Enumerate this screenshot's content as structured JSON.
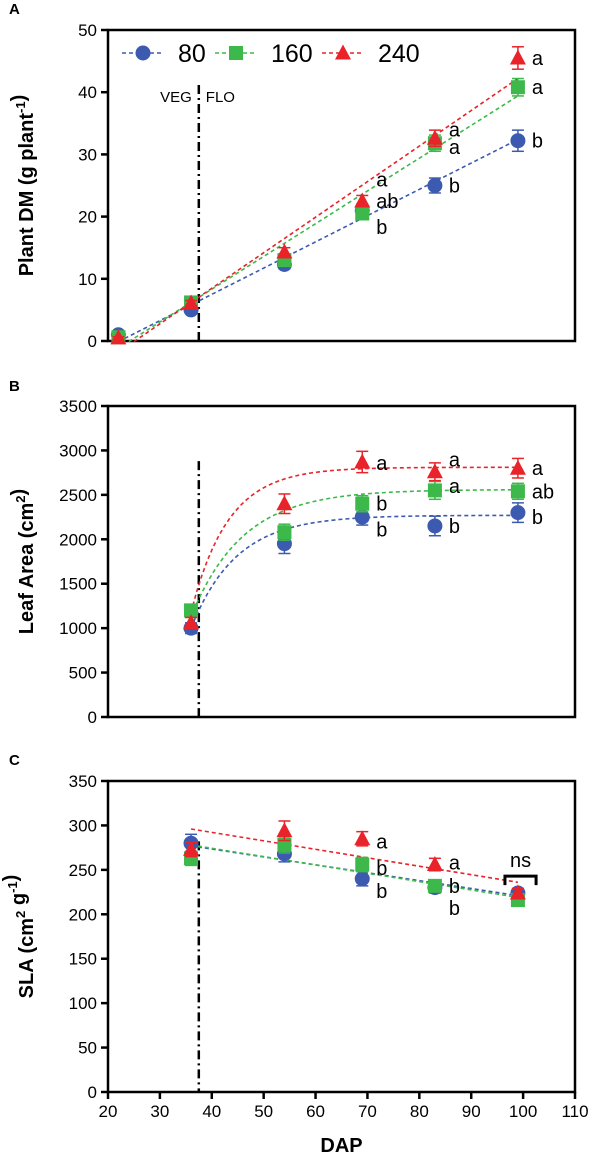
{
  "colors": {
    "s80": "#3c5bb0",
    "s160": "#3db84a",
    "s240": "#e8232a"
  },
  "legend": {
    "items": [
      {
        "key": "s80",
        "label": "80",
        "marker": "circle"
      },
      {
        "key": "s160",
        "label": "160",
        "marker": "square"
      },
      {
        "key": "s240",
        "label": "240",
        "marker": "triangle"
      }
    ],
    "placement": "top-left"
  },
  "chart_data": [
    {
      "panel": "A",
      "type": "scatter",
      "ylabel": "Plant DM (g plant-1)",
      "xlim": [
        20,
        110
      ],
      "ylim": [
        0,
        50
      ],
      "yticks": [
        0,
        10,
        20,
        30,
        40,
        50
      ],
      "vline": {
        "x": 37.5,
        "labels": [
          "VEG",
          "FLO"
        ]
      },
      "series": [
        {
          "key": "s80",
          "name": "80",
          "x": [
            22,
            36,
            54,
            69,
            83,
            99
          ],
          "y": [
            1,
            5,
            12.3,
            21,
            25,
            32.2
          ],
          "err": [
            0.3,
            0.5,
            0.7,
            1,
            1.2,
            1.7
          ],
          "fit": {
            "kind": "line",
            "points": [
              [
                22,
                -0.1
              ],
              [
                99,
                32.4
              ]
            ]
          }
        },
        {
          "key": "s160",
          "name": "160",
          "x": [
            22,
            36,
            54,
            69,
            83,
            99
          ],
          "y": [
            0.6,
            6.2,
            13,
            20.5,
            31.8,
            40.8
          ],
          "err": [
            0.2,
            0.4,
            0.6,
            0.8,
            1.3,
            1.4
          ],
          "fit": {
            "kind": "line",
            "points": [
              [
                24,
                -0.1
              ],
              [
                99,
                39.4
              ]
            ]
          }
        },
        {
          "key": "s240",
          "name": "240",
          "x": [
            22,
            36,
            54,
            69,
            83,
            99
          ],
          "y": [
            0.5,
            6.1,
            14.3,
            22.5,
            32.6,
            45.5
          ],
          "err": [
            0.2,
            0.4,
            0.7,
            0.9,
            1.3,
            1.8
          ],
          "fit": {
            "kind": "line",
            "points": [
              [
                25,
                -0.1
              ],
              [
                99,
                42.2
              ]
            ]
          }
        }
      ],
      "sig_labels": [
        {
          "x": 99,
          "y": 45.5,
          "text": "a"
        },
        {
          "x": 99,
          "y": 40.8,
          "text": "a"
        },
        {
          "x": 99,
          "y": 32.2,
          "text": "b"
        },
        {
          "x": 83,
          "y": 34,
          "text": "a"
        },
        {
          "x": 83,
          "y": 31.2,
          "text": "a"
        },
        {
          "x": 83,
          "y": 25,
          "text": "b"
        },
        {
          "x": 69,
          "y": 26,
          "text": "a"
        },
        {
          "x": 69,
          "y": 22.5,
          "text": "ab"
        },
        {
          "x": 69,
          "y": 18.3,
          "text": "b"
        }
      ]
    },
    {
      "panel": "B",
      "type": "scatter",
      "ylabel": "Leaf Area (cm2)",
      "xlim": [
        20,
        110
      ],
      "ylim": [
        0,
        3500
      ],
      "yticks": [
        0,
        500,
        1000,
        1500,
        2000,
        2500,
        3000,
        3500
      ],
      "vline": {
        "x": 37.5
      },
      "series": [
        {
          "key": "s80",
          "name": "80",
          "x": [
            36,
            54,
            69,
            83,
            99
          ],
          "y": [
            1000,
            1950,
            2250,
            2150,
            2300
          ],
          "err": [
            60,
            110,
            90,
            110,
            110
          ],
          "fit": {
            "kind": "exp",
            "x0": 36,
            "x1": 99,
            "y0": 1000,
            "plateau": 2270,
            "k": 0.115
          }
        },
        {
          "key": "s160",
          "name": "160",
          "x": [
            36,
            54,
            69,
            83,
            99
          ],
          "y": [
            1200,
            2080,
            2400,
            2550,
            2540
          ],
          "err": [
            60,
            90,
            90,
            100,
            90
          ],
          "fit": {
            "kind": "exp",
            "x0": 36,
            "x1": 99,
            "y0": 1130,
            "plateau": 2560,
            "k": 0.1
          }
        },
        {
          "key": "s240",
          "name": "240",
          "x": [
            36,
            54,
            69,
            83,
            99
          ],
          "y": [
            1060,
            2400,
            2870,
            2760,
            2800
          ],
          "err": [
            60,
            110,
            120,
            100,
            110
          ],
          "fit": {
            "kind": "exp",
            "x0": 36,
            "x1": 99,
            "y0": 1180,
            "plateau": 2810,
            "k": 0.14
          }
        }
      ],
      "sig_labels": [
        {
          "x": 69,
          "y": 2860,
          "text": "a"
        },
        {
          "x": 69,
          "y": 2400,
          "text": "b"
        },
        {
          "x": 69,
          "y": 2110,
          "text": "b"
        },
        {
          "x": 83,
          "y": 2900,
          "text": "a"
        },
        {
          "x": 83,
          "y": 2600,
          "text": "a"
        },
        {
          "x": 83,
          "y": 2150,
          "text": "b"
        },
        {
          "x": 99,
          "y": 2800,
          "text": "a"
        },
        {
          "x": 99,
          "y": 2540,
          "text": "ab"
        },
        {
          "x": 99,
          "y": 2250,
          "text": "b"
        }
      ]
    },
    {
      "panel": "C",
      "type": "scatter",
      "ylabel": "SLA (cm2 g-1)",
      "xlabel": "DAP",
      "xlim": [
        20,
        110
      ],
      "xticks": [
        20,
        30,
        40,
        50,
        60,
        70,
        80,
        90,
        100,
        110
      ],
      "ylim": [
        0,
        350
      ],
      "yticks": [
        0,
        50,
        100,
        150,
        200,
        250,
        300,
        350
      ],
      "vline": {
        "x": 37.5
      },
      "series": [
        {
          "key": "s80",
          "name": "80",
          "x": [
            36,
            54,
            69,
            83,
            99
          ],
          "y": [
            280,
            268,
            240,
            230,
            224
          ],
          "err": [
            10,
            9,
            8,
            6,
            5
          ],
          "fit": {
            "kind": "line",
            "points": [
              [
                36,
                277
              ],
              [
                99,
                221
              ]
            ]
          }
        },
        {
          "key": "s160",
          "name": "160",
          "x": [
            36,
            54,
            69,
            83,
            99
          ],
          "y": [
            263,
            278,
            256,
            232,
            216
          ],
          "err": [
            8,
            9,
            8,
            6,
            5
          ],
          "fit": {
            "kind": "line",
            "points": [
              [
                36,
                278
              ],
              [
                99,
                219
              ]
            ]
          }
        },
        {
          "key": "s240",
          "name": "240",
          "x": [
            36,
            54,
            69,
            83,
            99
          ],
          "y": [
            273,
            294,
            285,
            256,
            224
          ],
          "err": [
            8,
            11,
            8,
            7,
            5
          ],
          "fit": {
            "kind": "line",
            "points": [
              [
                36,
                296
              ],
              [
                99,
                236
              ]
            ]
          }
        }
      ],
      "sig_labels": [
        {
          "x": 69,
          "y": 282,
          "text": "a"
        },
        {
          "x": 69,
          "y": 252,
          "text": "b"
        },
        {
          "x": 69,
          "y": 226,
          "text": "b"
        },
        {
          "x": 83,
          "y": 258,
          "text": "a"
        },
        {
          "x": 83,
          "y": 232,
          "text": "b"
        },
        {
          "x": 83,
          "y": 207,
          "text": "b"
        }
      ],
      "ns_label": {
        "x0": 96.5,
        "x1": 102.5,
        "y": 243,
        "text": "ns"
      }
    }
  ]
}
